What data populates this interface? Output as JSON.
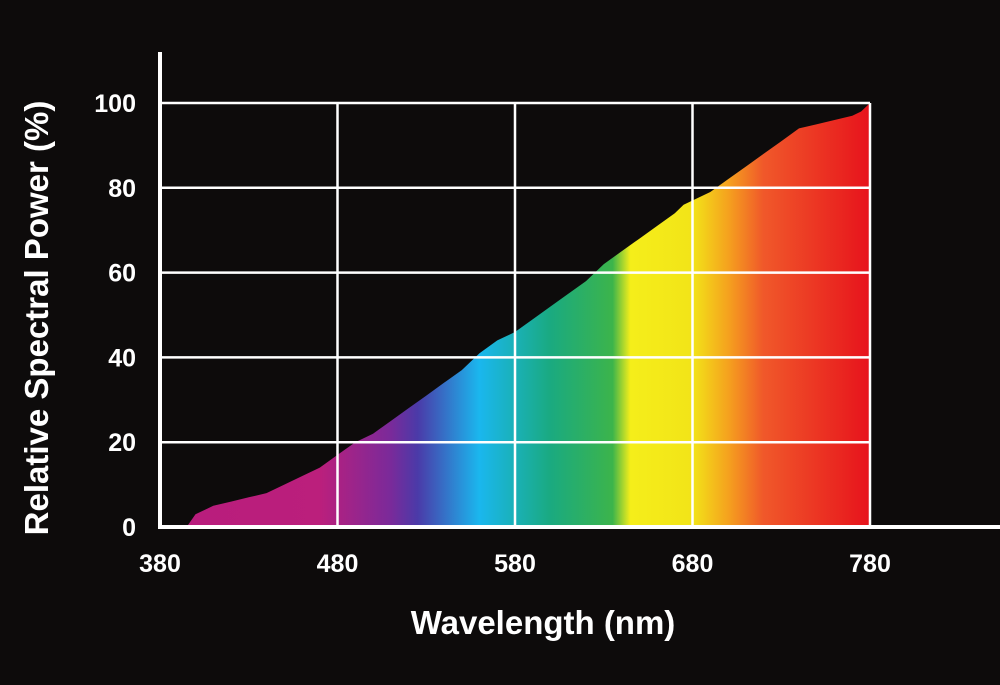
{
  "chart_data": {
    "type": "area",
    "xlabel": "Wavelength (nm)",
    "ylabel": "Relative Spectral Power (%)",
    "xlim": [
      380,
      780
    ],
    "ylim": [
      0,
      100
    ],
    "xticks": [
      380,
      480,
      580,
      680,
      780
    ],
    "yticks": [
      0,
      20,
      40,
      60,
      80,
      100
    ],
    "grid": true,
    "legend": "none",
    "background_color": "#0d0b0b",
    "grid_color": "#ffffff",
    "spectrum_colors": [
      {
        "wavelength": 380,
        "color": "#b81c7d"
      },
      {
        "wavelength": 470,
        "color": "#bb1f7c"
      },
      {
        "wavelength": 510,
        "color": "#7a2a9a"
      },
      {
        "wavelength": 525,
        "color": "#4b3aa8"
      },
      {
        "wavelength": 560,
        "color": "#1ab7ee"
      },
      {
        "wavelength": 600,
        "color": "#1aaa80"
      },
      {
        "wavelength": 635,
        "color": "#3cb44b"
      },
      {
        "wavelength": 645,
        "color": "#f5ee1a"
      },
      {
        "wavelength": 680,
        "color": "#f2e418"
      },
      {
        "wavelength": 700,
        "color": "#f5a21e"
      },
      {
        "wavelength": 720,
        "color": "#f0582a"
      },
      {
        "wavelength": 780,
        "color": "#e7131c"
      }
    ],
    "series": [
      {
        "x": [
          395,
          400,
          410,
          420,
          430,
          440,
          450,
          460,
          470,
          480,
          490,
          500,
          510,
          520,
          530,
          540,
          550,
          560,
          570,
          580,
          590,
          600,
          610,
          620,
          630,
          640,
          650,
          660,
          670,
          675,
          680,
          690,
          700,
          710,
          720,
          730,
          740,
          750,
          760,
          770,
          775,
          780
        ],
        "y": [
          0,
          3,
          5,
          6,
          7,
          8,
          10,
          12,
          14,
          17,
          20,
          22,
          25,
          28,
          31,
          34,
          37,
          41,
          44,
          46,
          49,
          52,
          55,
          58,
          62,
          65,
          68,
          71,
          74,
          76,
          77,
          79,
          82,
          85,
          88,
          91,
          94,
          95,
          96,
          97,
          98,
          100
        ]
      }
    ]
  }
}
